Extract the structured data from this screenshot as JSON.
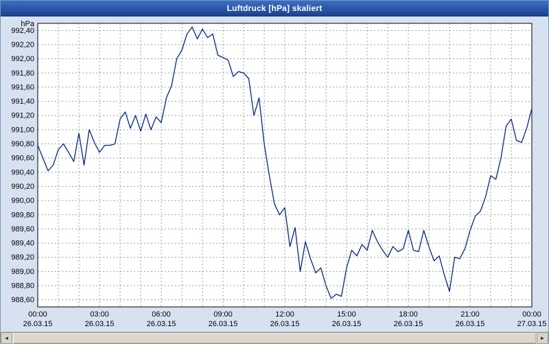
{
  "window": {
    "title": "Luftdruck [hPa] skaliert"
  },
  "scrollbar": {
    "left_arrow": "◄",
    "right_arrow": "►"
  },
  "chart_data": {
    "type": "line",
    "title": "Luftdruck [hPa] skaliert",
    "ylabel": "hPa",
    "ylim": [
      988.5,
      992.5
    ],
    "ytick_start": 988.6,
    "ytick_end": 992.4,
    "ytick_step": 0.2,
    "xlim_hours": [
      0,
      24
    ],
    "xgrid_step_hours": 1,
    "grid": "dashed",
    "legend": "none",
    "line_color": "#00249c",
    "grid_color": "#8fa58f",
    "frame_color": "#000000",
    "xticks": [
      {
        "time": "00:00",
        "date": "26.03.15"
      },
      {
        "time": "03:00",
        "date": "26.03.15"
      },
      {
        "time": "06:00",
        "date": "26.03.15"
      },
      {
        "time": "09:00",
        "date": "26.03.15"
      },
      {
        "time": "12:00",
        "date": "26.03.15"
      },
      {
        "time": "15:00",
        "date": "26.03.15"
      },
      {
        "time": "18:00",
        "date": "26.03.15"
      },
      {
        "time": "21:00",
        "date": "26.03.15"
      },
      {
        "time": "00:00",
        "date": "27.03.15"
      }
    ],
    "points": [
      [
        0.0,
        990.78
      ],
      [
        0.25,
        990.6
      ],
      [
        0.5,
        990.42
      ],
      [
        0.75,
        990.5
      ],
      [
        1.0,
        990.72
      ],
      [
        1.25,
        990.8
      ],
      [
        1.5,
        990.68
      ],
      [
        1.75,
        990.55
      ],
      [
        2.0,
        990.95
      ],
      [
        2.25,
        990.5
      ],
      [
        2.5,
        991.0
      ],
      [
        2.75,
        990.82
      ],
      [
        3.0,
        990.68
      ],
      [
        3.25,
        990.78
      ],
      [
        3.5,
        990.78
      ],
      [
        3.75,
        990.8
      ],
      [
        4.0,
        991.15
      ],
      [
        4.25,
        991.25
      ],
      [
        4.5,
        991.02
      ],
      [
        4.75,
        991.2
      ],
      [
        5.0,
        990.98
      ],
      [
        5.25,
        991.22
      ],
      [
        5.5,
        991.0
      ],
      [
        5.75,
        991.18
      ],
      [
        6.0,
        991.1
      ],
      [
        6.25,
        991.45
      ],
      [
        6.5,
        991.62
      ],
      [
        6.75,
        992.0
      ],
      [
        7.0,
        992.12
      ],
      [
        7.25,
        992.35
      ],
      [
        7.5,
        992.45
      ],
      [
        7.75,
        992.28
      ],
      [
        8.0,
        992.42
      ],
      [
        8.25,
        992.3
      ],
      [
        8.5,
        992.35
      ],
      [
        8.75,
        992.05
      ],
      [
        9.0,
        992.02
      ],
      [
        9.25,
        991.98
      ],
      [
        9.5,
        991.75
      ],
      [
        9.75,
        991.82
      ],
      [
        10.0,
        991.8
      ],
      [
        10.25,
        991.72
      ],
      [
        10.5,
        991.2
      ],
      [
        10.75,
        991.45
      ],
      [
        11.0,
        990.8
      ],
      [
        11.25,
        990.35
      ],
      [
        11.5,
        989.95
      ],
      [
        11.75,
        989.8
      ],
      [
        12.0,
        989.9
      ],
      [
        12.25,
        989.35
      ],
      [
        12.5,
        989.62
      ],
      [
        12.75,
        989.0
      ],
      [
        13.0,
        989.42
      ],
      [
        13.25,
        989.18
      ],
      [
        13.5,
        988.98
      ],
      [
        13.75,
        989.05
      ],
      [
        14.0,
        988.8
      ],
      [
        14.25,
        988.62
      ],
      [
        14.5,
        988.68
      ],
      [
        14.75,
        988.65
      ],
      [
        15.0,
        989.05
      ],
      [
        15.25,
        989.3
      ],
      [
        15.5,
        989.22
      ],
      [
        15.75,
        989.38
      ],
      [
        16.0,
        989.3
      ],
      [
        16.25,
        989.58
      ],
      [
        16.5,
        989.42
      ],
      [
        16.75,
        989.3
      ],
      [
        17.0,
        989.2
      ],
      [
        17.25,
        989.35
      ],
      [
        17.5,
        989.28
      ],
      [
        17.75,
        989.32
      ],
      [
        18.0,
        989.58
      ],
      [
        18.25,
        989.3
      ],
      [
        18.5,
        989.28
      ],
      [
        18.75,
        989.58
      ],
      [
        19.0,
        989.35
      ],
      [
        19.25,
        989.15
      ],
      [
        19.5,
        989.22
      ],
      [
        19.75,
        988.95
      ],
      [
        20.0,
        988.72
      ],
      [
        20.25,
        989.2
      ],
      [
        20.5,
        989.18
      ],
      [
        20.75,
        989.32
      ],
      [
        21.0,
        989.58
      ],
      [
        21.25,
        989.78
      ],
      [
        21.5,
        989.85
      ],
      [
        21.75,
        990.05
      ],
      [
        22.0,
        990.35
      ],
      [
        22.25,
        990.3
      ],
      [
        22.5,
        990.6
      ],
      [
        22.75,
        991.05
      ],
      [
        23.0,
        991.15
      ],
      [
        23.25,
        990.85
      ],
      [
        23.5,
        990.82
      ],
      [
        23.75,
        991.02
      ],
      [
        24.0,
        991.3
      ]
    ]
  }
}
